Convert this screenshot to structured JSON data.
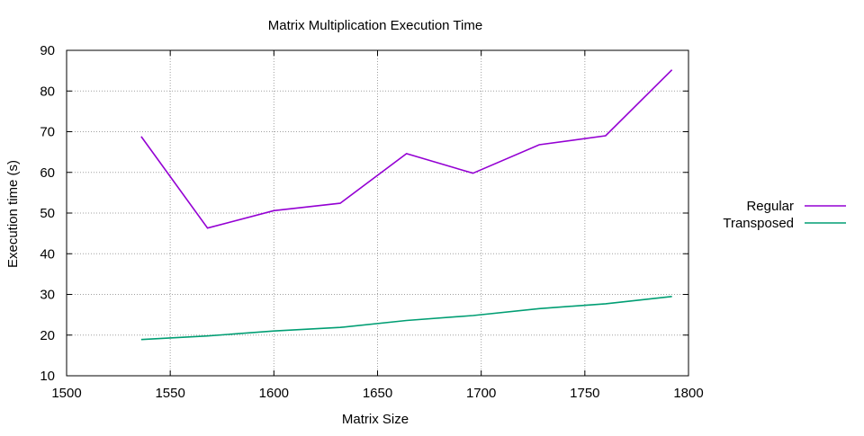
{
  "chart_data": {
    "type": "line",
    "title": "Matrix Multiplication Execution Time",
    "xlabel": "Matrix Size",
    "ylabel": "Execution time (s)",
    "xlim": [
      1500,
      1800
    ],
    "ylim": [
      10,
      90
    ],
    "x_ticks": [
      1500,
      1550,
      1600,
      1650,
      1700,
      1750,
      1800
    ],
    "y_ticks": [
      10,
      20,
      30,
      40,
      50,
      60,
      70,
      80,
      90
    ],
    "x_tick_labels": [
      "1500",
      "1550",
      "1600",
      "1650",
      "1700",
      "1750",
      "1800"
    ],
    "y_tick_labels": [
      "10",
      "20",
      "30",
      "40",
      "50",
      "60",
      "70",
      "80",
      "90"
    ],
    "grid": true,
    "legend_position": "right",
    "x": [
      1536,
      1568,
      1600,
      1632,
      1664,
      1696,
      1728,
      1760,
      1792
    ],
    "series": [
      {
        "name": "Regular",
        "color": "#9400d3",
        "values": [
          68.8,
          46.3,
          50.6,
          52.4,
          64.6,
          59.8,
          66.8,
          69.0,
          85.2
        ]
      },
      {
        "name": "Transposed",
        "color": "#009e73",
        "values": [
          18.9,
          19.8,
          21.0,
          21.9,
          23.6,
          24.8,
          26.5,
          27.7,
          29.5
        ]
      }
    ]
  }
}
